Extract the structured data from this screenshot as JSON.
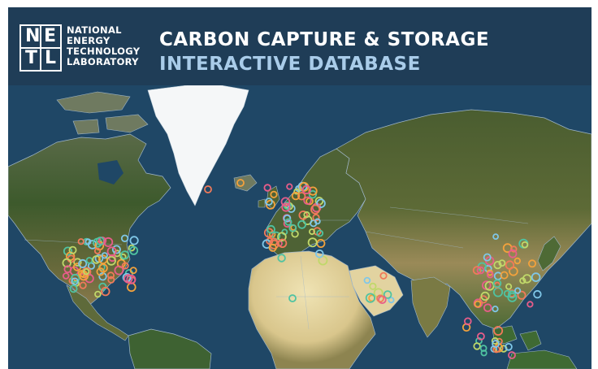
{
  "header": {
    "logo_letters": [
      "N",
      "E",
      "T",
      "L"
    ],
    "org_lines": [
      "NATIONAL",
      "ENERGY",
      "TECHNOLOGY",
      "LABORATORY"
    ],
    "title": "CARBON CAPTURE & STORAGE",
    "subtitle": "INTERACTIVE DATABASE"
  },
  "map": {
    "colors": {
      "ocean": "#1f4766",
      "forest": "#3f5a2e",
      "dry": "#8a7a4e",
      "desert": "#e2d3a0",
      "ice": "#f5f7f8",
      "border": "#9fb6c8"
    },
    "marker_colors": [
      "#f07a5a",
      "#4fc3a1",
      "#f3a23c",
      "#e85d8a",
      "#7fc7e8",
      "#c0d86a"
    ],
    "clusters": [
      {
        "region": "north-america-west",
        "count": 30
      },
      {
        "region": "north-america-east",
        "count": 40
      },
      {
        "region": "europe",
        "count": 60
      },
      {
        "region": "east-asia",
        "count": 45
      },
      {
        "region": "middle-east",
        "count": 10
      },
      {
        "region": "other",
        "count": 15
      }
    ]
  }
}
